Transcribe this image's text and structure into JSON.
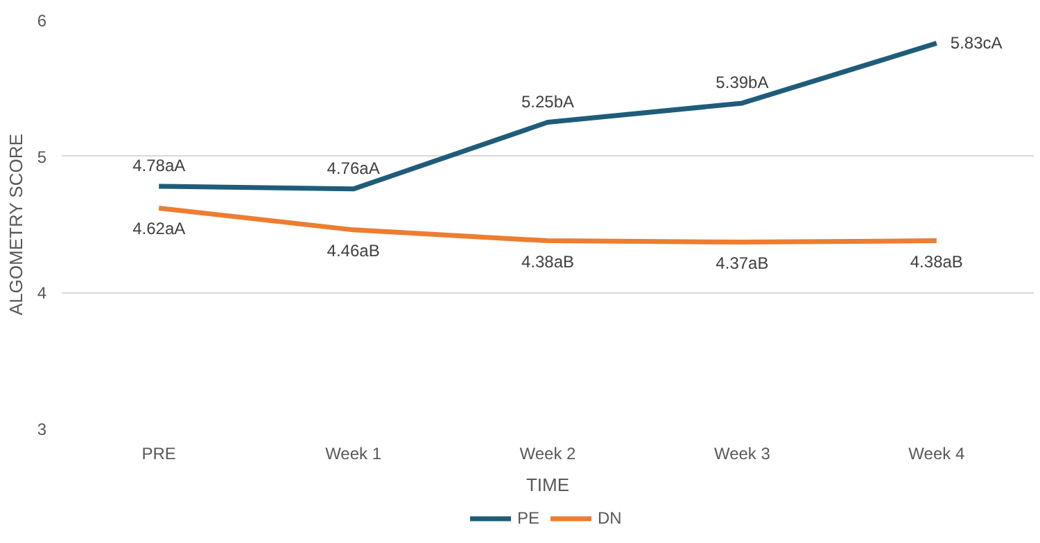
{
  "chart_data": {
    "type": "line",
    "xlabel": "TIME",
    "ylabel": "ALGOMETRY SCORE",
    "categories": [
      "PRE",
      "Week 1",
      "Week 2",
      "Week 3",
      "Week 4"
    ],
    "series": [
      {
        "name": "PE",
        "color": "#1f5c7a",
        "values": [
          4.78,
          4.76,
          5.25,
          5.39,
          5.83
        ],
        "value_labels": [
          "4.78aA",
          "4.76aA",
          "5.25bA",
          "5.39bA",
          "5.83cA"
        ]
      },
      {
        "name": "DN",
        "color": "#ed7d31",
        "values": [
          4.62,
          4.46,
          4.38,
          4.37,
          4.38
        ],
        "value_labels": [
          "4.62aA",
          "4.46aB",
          "4.38aB",
          "4.37aB",
          "4.38aB"
        ]
      }
    ],
    "ylim": [
      3,
      6
    ],
    "yticks": [
      3,
      4,
      5,
      6
    ],
    "grid": "y",
    "legend": "bottom",
    "marker": "none",
    "line_style": "solid"
  }
}
